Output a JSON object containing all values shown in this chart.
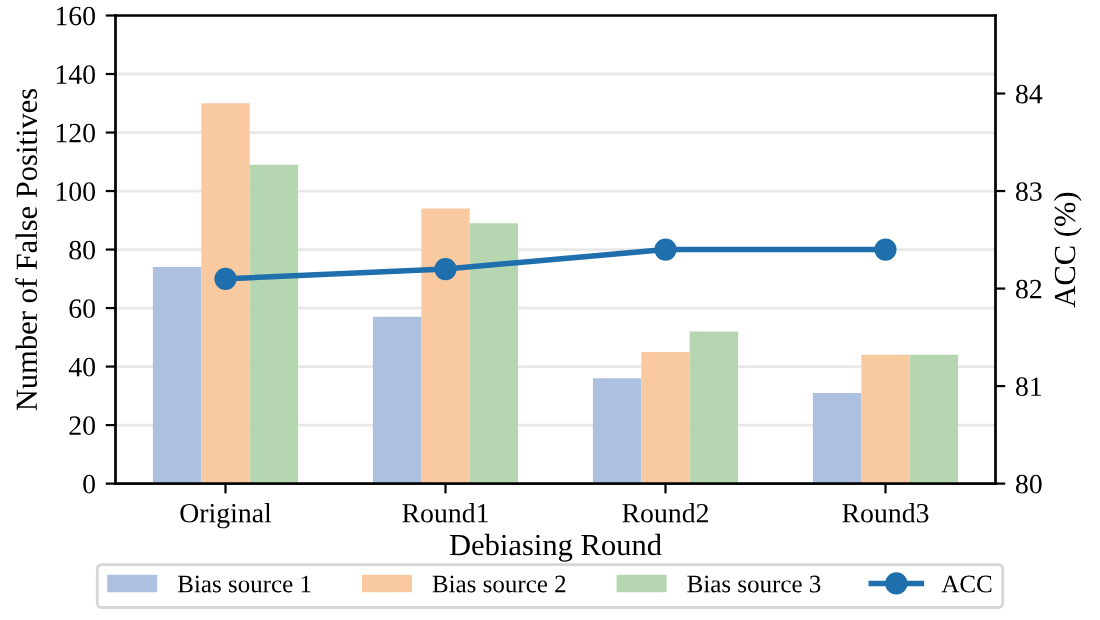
{
  "chart_data": {
    "type": "bar",
    "xlabel": "Debiasing Round",
    "ylabel": "Number of False Positives",
    "y2label": "ACC (%)",
    "categories": [
      "Original",
      "Round1",
      "Round2",
      "Round3"
    ],
    "series": [
      {
        "name": "Bias source 1",
        "color": "#aec0df",
        "values": [
          74,
          57,
          36,
          31
        ]
      },
      {
        "name": "Bias source 2",
        "color": "#f9c9a0",
        "values": [
          130,
          94,
          45,
          44
        ]
      },
      {
        "name": "Bias source 3",
        "color": "#b5d6b0",
        "values": [
          109,
          89,
          52,
          44
        ]
      },
      {
        "name": "ACC",
        "type": "line",
        "axis": "y2",
        "color": "#1f6fad",
        "marker": "circle",
        "line_style": "solid",
        "values": [
          82.1,
          82.2,
          82.4,
          82.4
        ]
      }
    ],
    "ylim": [
      0,
      160
    ],
    "yticks": [
      0,
      20,
      40,
      60,
      80,
      100,
      120,
      140,
      160
    ],
    "y2lim": [
      80,
      84.8
    ],
    "y2ticks": [
      80,
      81,
      82,
      83,
      84
    ],
    "grid": "y",
    "legend": "bottom"
  }
}
